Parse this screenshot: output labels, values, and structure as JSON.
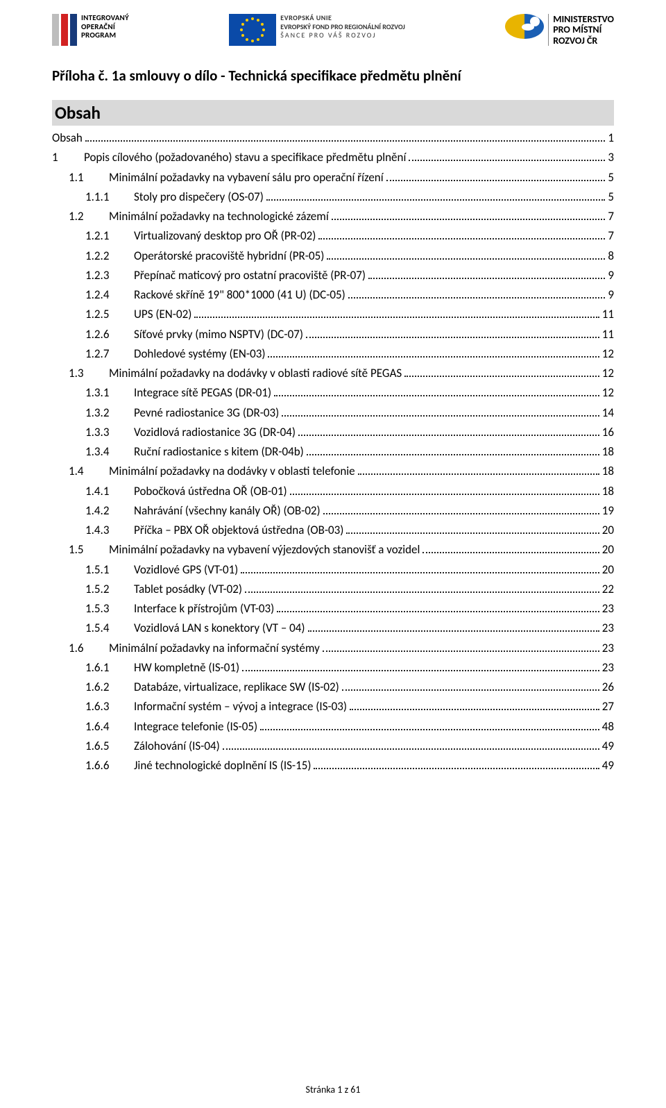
{
  "header": {
    "logo_iop": {
      "bar_colors": [
        "#bdbdbd",
        "#d22222",
        "#173a7a"
      ],
      "line1": "INTEGROVANÝ",
      "line2": "OPERAČNÍ",
      "line3": "PROGRAM"
    },
    "logo_eu": {
      "flag_bg": "#0a4aa8",
      "star_color": "#ffcc00",
      "line1": "EVROPSKÁ UNIE",
      "line2": "EVROPSKÝ FOND PRO REGIONÁLNÍ ROZVOJ",
      "line3": "ŠANCE PRO VÁŠ ROZVOJ"
    },
    "logo_mmr": {
      "line1": "MINISTERSTVO",
      "line2": "PRO MÍSTNÍ",
      "line3": "ROZVOJ ČR"
    }
  },
  "title": "Příloha č. 1a smlouvy o dílo - Technická specifikace předmětu plnění",
  "obsah_heading": "Obsah",
  "toc": [
    {
      "level": 0,
      "num": "",
      "label": "Obsah",
      "page": "1"
    },
    {
      "level": 1,
      "num": "1",
      "label": "Popis cílového (požadovaného) stavu a specifikace předmětu plnění",
      "page": "3"
    },
    {
      "level": 2,
      "num": "1.1",
      "label": "Minimální požadavky na vybavení sálu pro operační řízení",
      "page": "5"
    },
    {
      "level": 3,
      "num": "1.1.1",
      "label": "Stoly pro dispečery (OS-07)",
      "page": "5"
    },
    {
      "level": 2,
      "num": "1.2",
      "label": "Minimální požadavky na technologické zázemí",
      "page": "7"
    },
    {
      "level": 3,
      "num": "1.2.1",
      "label": "Virtualizovaný desktop pro OŘ (PR-02)",
      "page": "7"
    },
    {
      "level": 3,
      "num": "1.2.2",
      "label": "Operátorské pracoviště hybridní (PR-05)",
      "page": "8"
    },
    {
      "level": 3,
      "num": "1.2.3",
      "label": "Přepínač maticový pro ostatní pracoviště (PR-07)",
      "page": "9"
    },
    {
      "level": 3,
      "num": "1.2.4",
      "label": "Rackové skříně 19\" 800*1000 (41 U) (DC-05)",
      "page": "9"
    },
    {
      "level": 3,
      "num": "1.2.5",
      "label": "UPS (EN-02)",
      "page": "11"
    },
    {
      "level": 3,
      "num": "1.2.6",
      "label": "Síťové prvky (mimo NSPTV) (DC-07)",
      "page": "11"
    },
    {
      "level": 3,
      "num": "1.2.7",
      "label": "Dohledové systémy (EN-03)",
      "page": "12"
    },
    {
      "level": 2,
      "num": "1.3",
      "label": "Minimální požadavky na dodávky v oblasti radiové sítě PEGAS",
      "page": "12"
    },
    {
      "level": 3,
      "num": "1.3.1",
      "label": "Integrace sítě  PEGAS (DR-01)",
      "page": "12"
    },
    {
      "level": 3,
      "num": "1.3.2",
      "label": "Pevné radiostanice 3G (DR-03)",
      "page": "14"
    },
    {
      "level": 3,
      "num": "1.3.3",
      "label": "Vozidlová radiostanice 3G (DR-04)",
      "page": "16"
    },
    {
      "level": 3,
      "num": "1.3.4",
      "label": "Ruční radiostanice s kitem (DR-04b)",
      "page": "18"
    },
    {
      "level": 2,
      "num": "1.4",
      "label": "Minimální požadavky na dodávky v oblasti telefonie",
      "page": "18"
    },
    {
      "level": 3,
      "num": "1.4.1",
      "label": "Pobočková ústředna  OŘ (OB-01)",
      "page": "18"
    },
    {
      "level": 3,
      "num": "1.4.2",
      "label": "Nahrávání (všechny kanály OŘ) (OB-02)",
      "page": "19"
    },
    {
      "level": 3,
      "num": "1.4.3",
      "label": "Příčka – PBX OŘ objektová ústředna (OB-03)",
      "page": "20"
    },
    {
      "level": 2,
      "num": "1.5",
      "label": "Minimální požadavky na vybavení výjezdových stanovišť a vozidel",
      "page": "20"
    },
    {
      "level": 3,
      "num": "1.5.1",
      "label": "Vozidlové GPS (VT-01)",
      "page": "20"
    },
    {
      "level": 3,
      "num": "1.5.2",
      "label": "Tablet posádky (VT-02)",
      "page": "22"
    },
    {
      "level": 3,
      "num": "1.5.3",
      "label": "Interface k přístrojům (VT-03)",
      "page": "23"
    },
    {
      "level": 3,
      "num": "1.5.4",
      "label": "Vozidlová LAN s konektory (VT – 04)",
      "page": "23"
    },
    {
      "level": 2,
      "num": "1.6",
      "label": "Minimální požadavky na informační systémy",
      "page": "23"
    },
    {
      "level": 3,
      "num": "1.6.1",
      "label": "HW kompletně (IS-01)",
      "page": "23"
    },
    {
      "level": 3,
      "num": "1.6.2",
      "label": "Databáze, virtualizace, replikace SW (IS-02)",
      "page": "26"
    },
    {
      "level": 3,
      "num": "1.6.3",
      "label": "Informační systém – vývoj a integrace (IS-03)",
      "page": "27"
    },
    {
      "level": 3,
      "num": "1.6.4",
      "label": "Integrace telefonie (IS-05)",
      "page": "48"
    },
    {
      "level": 3,
      "num": "1.6.5",
      "label": "Zálohování (IS-04)",
      "page": "49"
    },
    {
      "level": 3,
      "num": "1.6.6",
      "label": "Jiné technologické doplnění IS (IS-15)",
      "page": "49"
    }
  ],
  "footer": "Stránka 1 z 61"
}
